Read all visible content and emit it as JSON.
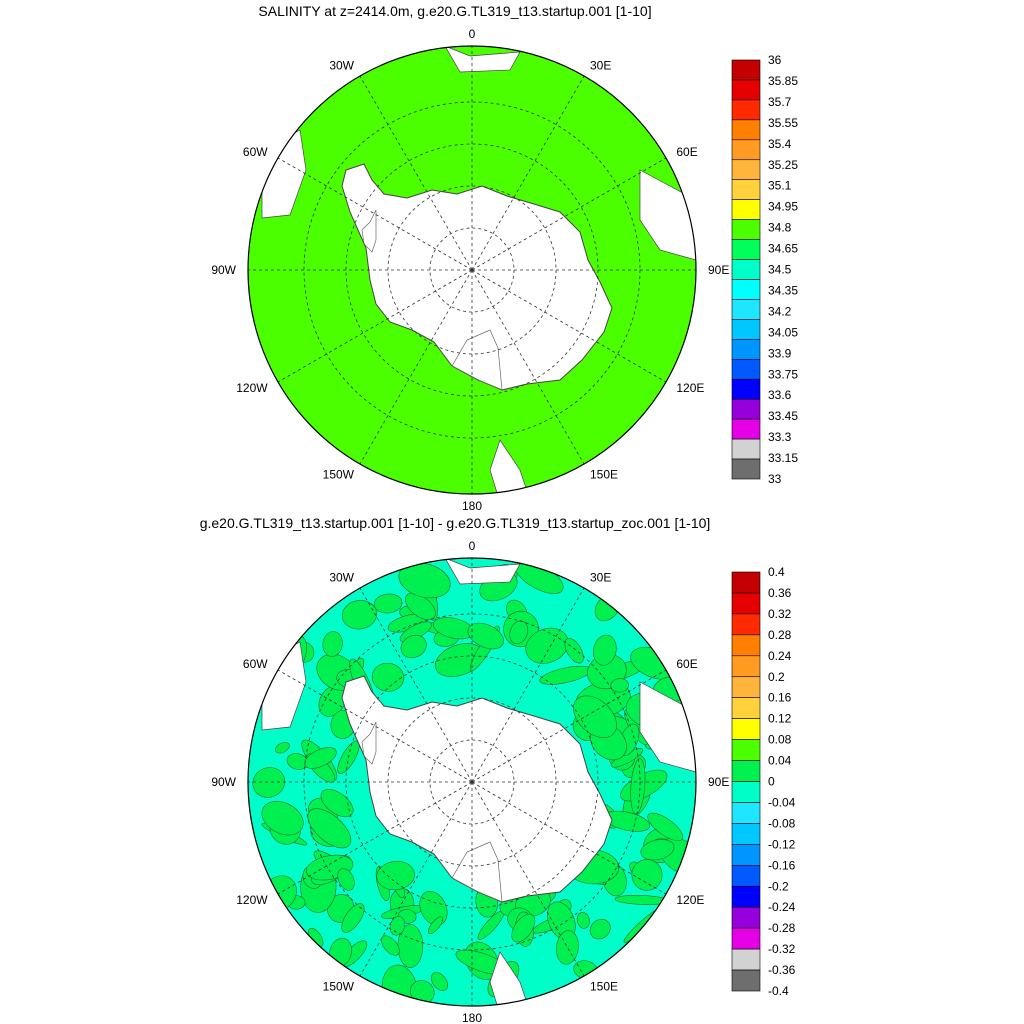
{
  "panels": [
    {
      "title": "SALINITY at z=2414.0m, g.e20.G.TL319_t13.startup.001 [1-10]",
      "fill_color": "#4cff00",
      "longitude_labels": [
        "0",
        "30E",
        "60E",
        "90E",
        "120E",
        "150E",
        "180",
        "150W",
        "120W",
        "90W",
        "60W",
        "30W"
      ],
      "colorbar": {
        "labels": [
          "36",
          "35.85",
          "35.7",
          "35.55",
          "35.4",
          "35.25",
          "35.1",
          "34.95",
          "34.8",
          "34.65",
          "34.5",
          "34.35",
          "34.2",
          "34.05",
          "33.9",
          "33.75",
          "33.6",
          "33.45",
          "33.3",
          "33.15",
          "33"
        ],
        "colors": [
          "#c40000",
          "#e60000",
          "#ff2a00",
          "#ff8000",
          "#ff9b20",
          "#ffb43c",
          "#ffd23c",
          "#ffff00",
          "#4cff00",
          "#00ff5a",
          "#00ffc8",
          "#00ffff",
          "#1ee6ff",
          "#00c8ff",
          "#0096ff",
          "#005aff",
          "#0000ff",
          "#9600dc",
          "#e600e6",
          "#d2d2d2",
          "#6e6e6e"
        ]
      }
    },
    {
      "title": "g.e20.G.TL319_t13.startup.001 [1-10] - g.e20.G.TL319_t13.startup_zoc.001 [1-10]",
      "fill_color": "#00ffc8",
      "secondary_color": "#00f050",
      "longitude_labels": [
        "0",
        "30E",
        "60E",
        "90E",
        "120E",
        "150E",
        "180",
        "150W",
        "120W",
        "90W",
        "60W",
        "30W"
      ],
      "colorbar": {
        "labels": [
          "0.4",
          "0.36",
          "0.32",
          "0.28",
          "0.24",
          "0.2",
          "0.16",
          "0.12",
          "0.08",
          "0.04",
          "0",
          "-0.04",
          "-0.08",
          "-0.12",
          "-0.16",
          "-0.2",
          "-0.24",
          "-0.28",
          "-0.32",
          "-0.36",
          "-0.4"
        ],
        "colors": [
          "#c40000",
          "#e60000",
          "#ff2a00",
          "#ff8000",
          "#ff9b20",
          "#ffb43c",
          "#ffd23c",
          "#ffff00",
          "#4cff00",
          "#00f050",
          "#00ffc8",
          "#1ee6ff",
          "#00c8ff",
          "#0096ff",
          "#005aff",
          "#0000ff",
          "#9600dc",
          "#e600e6",
          "#d2d2d2",
          "#6e6e6e"
        ]
      }
    }
  ]
}
